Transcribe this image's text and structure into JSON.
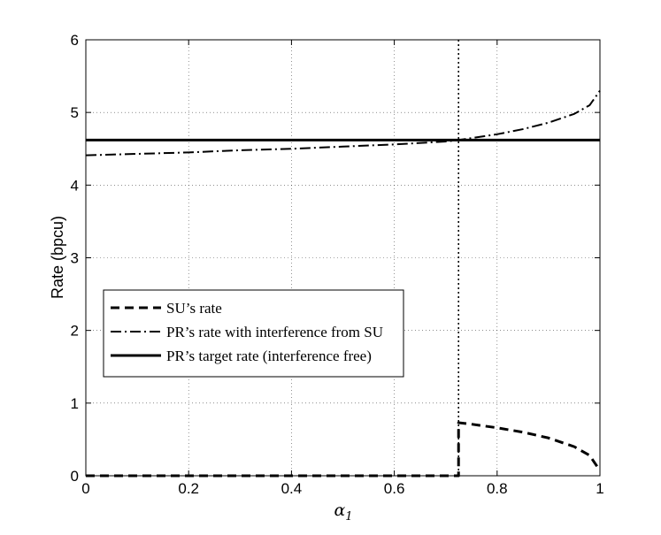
{
  "chart_data": {
    "type": "line",
    "title": "",
    "xlabel": "α",
    "xlabel_sub": "1",
    "ylabel": "Rate (bpcu)",
    "xlim": [
      0,
      1
    ],
    "ylim": [
      0,
      6
    ],
    "xticks": [
      0,
      0.2,
      0.4,
      0.6,
      0.8,
      1
    ],
    "xtick_labels": [
      "0",
      "0.2",
      "0.4",
      "0.6",
      "0.8",
      "1"
    ],
    "yticks": [
      0,
      1,
      2,
      3,
      4,
      5,
      6
    ],
    "ytick_labels": [
      "0",
      "1",
      "2",
      "3",
      "4",
      "5",
      "6"
    ],
    "grid": true,
    "legend_position": "lower-left",
    "vertical_marker": {
      "x": 0.725,
      "style": "dotted"
    },
    "series": [
      {
        "name": "SU’s rate",
        "style": "dashed",
        "color": "#000000",
        "x": [
          0,
          0.1,
          0.2,
          0.3,
          0.4,
          0.5,
          0.6,
          0.7,
          0.725,
          0.725,
          0.75,
          0.8,
          0.85,
          0.9,
          0.95,
          0.98,
          1.0
        ],
        "y": [
          0,
          0,
          0,
          0,
          0,
          0,
          0,
          0,
          0,
          0.73,
          0.71,
          0.66,
          0.6,
          0.52,
          0.4,
          0.28,
          0.07
        ]
      },
      {
        "name": "PR’s rate with interference from SU",
        "style": "dashdot",
        "color": "#000000",
        "x": [
          0,
          0.1,
          0.2,
          0.3,
          0.4,
          0.5,
          0.6,
          0.7,
          0.725,
          0.8,
          0.85,
          0.9,
          0.95,
          0.98,
          1.0
        ],
        "y": [
          4.41,
          4.43,
          4.45,
          4.48,
          4.5,
          4.53,
          4.56,
          4.6,
          4.62,
          4.7,
          4.77,
          4.86,
          4.98,
          5.1,
          5.3
        ]
      },
      {
        "name": "PR’s target rate (interference free)",
        "style": "solid",
        "color": "#000000",
        "x": [
          0,
          1
        ],
        "y": [
          4.62,
          4.62
        ]
      }
    ]
  }
}
